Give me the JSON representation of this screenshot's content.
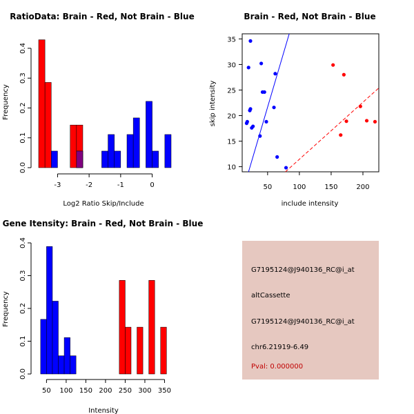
{
  "colors": {
    "red": "#ff0000",
    "blue": "#0000ff",
    "overlap": "#800080",
    "panel_bg": "#e6c8c0",
    "pval": "#c00000"
  },
  "chart_data": [
    {
      "type": "bar",
      "title": "RatioData: Brain - Red, Not Brain - Blue",
      "xlabel": "Log2 Ratio Skip/Include",
      "ylabel": "Frequency",
      "xlim": [
        -3.6,
        0.6
      ],
      "ylim": [
        0,
        0.43
      ],
      "bin_width": 0.2,
      "x_ticks": [
        -3,
        -2,
        -1,
        0
      ],
      "x_tick_labels": [
        "-3",
        "-2",
        "-1",
        "0"
      ],
      "y_ticks": [
        0.0,
        0.1,
        0.2,
        0.3,
        0.4
      ],
      "y_tick_labels": [
        "0.0",
        "0.1",
        "0.2",
        "0.3",
        "0.4"
      ],
      "series": [
        {
          "name": "Brain",
          "color": "red",
          "bins": [
            [
              -3.6,
              0.4286
            ],
            [
              -3.4,
              0.2857
            ],
            [
              -2.6,
              0.1429
            ],
            [
              -2.4,
              0.1429
            ]
          ]
        },
        {
          "name": "Not Brain",
          "color": "blue",
          "bins": [
            [
              -3.2,
              0.0556
            ],
            [
              -2.4,
              0.0556
            ],
            [
              -1.6,
              0.0556
            ],
            [
              -1.4,
              0.1111
            ],
            [
              -1.2,
              0.0556
            ],
            [
              -0.8,
              0.1111
            ],
            [
              -0.6,
              0.1667
            ],
            [
              -0.2,
              0.2222
            ],
            [
              0.0,
              0.0556
            ],
            [
              0.4,
              0.1111
            ]
          ]
        }
      ]
    },
    {
      "type": "scatter",
      "title": "Brain - Red, Not Brain - Blue",
      "xlabel": "include intensity",
      "ylabel": "skip intensity",
      "xlim": [
        10,
        225
      ],
      "ylim": [
        9,
        36
      ],
      "x_ticks": [
        50,
        100,
        150,
        200
      ],
      "x_tick_labels": [
        "50",
        "100",
        "150",
        "200"
      ],
      "y_ticks": [
        10,
        15,
        20,
        25,
        30,
        35
      ],
      "y_tick_labels": [
        "10",
        "15",
        "20",
        "25",
        "30",
        "35"
      ],
      "series": [
        {
          "name": "Not Brain",
          "color": "blue",
          "x": [
            23,
            20,
            40,
            62,
            42,
            45,
            23,
            22,
            60,
            18,
            17,
            27,
            25,
            48,
            38,
            65,
            79
          ],
          "y": [
            34.6,
            29.4,
            30.2,
            28.2,
            24.6,
            24.6,
            21.3,
            21.0,
            21.6,
            18.8,
            18.5,
            17.9,
            17.6,
            18.8,
            16.0,
            11.9,
            9.8
          ]
        },
        {
          "name": "Brain",
          "color": "red",
          "x": [
            153,
            170,
            196,
            174,
            206,
            219,
            165
          ],
          "y": [
            29.9,
            28.0,
            21.8,
            18.9,
            19.0,
            18.8,
            16.2
          ]
        }
      ],
      "lines": [
        {
          "color": "blue",
          "style": "solid",
          "x": [
            20,
            84
          ],
          "y": [
            9,
            36
          ]
        },
        {
          "color": "red",
          "style": "dashed",
          "x": [
            78,
            225
          ],
          "y": [
            9,
            25.4
          ]
        }
      ]
    },
    {
      "type": "bar",
      "title": "Gene Itensity: Brain - Red, Not Brain - Blue",
      "xlabel": "Intensity",
      "ylabel": "Frequency",
      "xlim": [
        30,
        365
      ],
      "ylim": [
        0,
        0.4
      ],
      "bin_width": 15,
      "x_ticks": [
        50,
        100,
        150,
        200,
        250,
        300,
        350
      ],
      "x_tick_labels": [
        "50",
        "100",
        "150",
        "200",
        "250",
        "300",
        "350"
      ],
      "y_ticks": [
        0.0,
        0.1,
        0.2,
        0.3,
        0.4
      ],
      "y_tick_labels": [
        "0.0",
        "0.1",
        "0.2",
        "0.3",
        "0.4"
      ],
      "series": [
        {
          "name": "Not Brain",
          "color": "blue",
          "bins": [
            [
              35,
              0.1667
            ],
            [
              50,
              0.3889
            ],
            [
              65,
              0.2222
            ],
            [
              80,
              0.0556
            ],
            [
              95,
              0.1111
            ],
            [
              110,
              0.0556
            ]
          ]
        },
        {
          "name": "Brain",
          "color": "red",
          "bins": [
            [
              235,
              0.2857
            ],
            [
              250,
              0.1429
            ],
            [
              280,
              0.1429
            ],
            [
              310,
              0.2857
            ],
            [
              340,
              0.1429
            ]
          ]
        }
      ]
    }
  ],
  "info": {
    "probe_id": "G7195124@J940136_RC@i_at",
    "event_type": "altCassette",
    "probe_id_2": "G7195124@J940136_RC@i_at",
    "location": "chr6.21919-6.49",
    "pval": "Pval: 0.000000"
  }
}
